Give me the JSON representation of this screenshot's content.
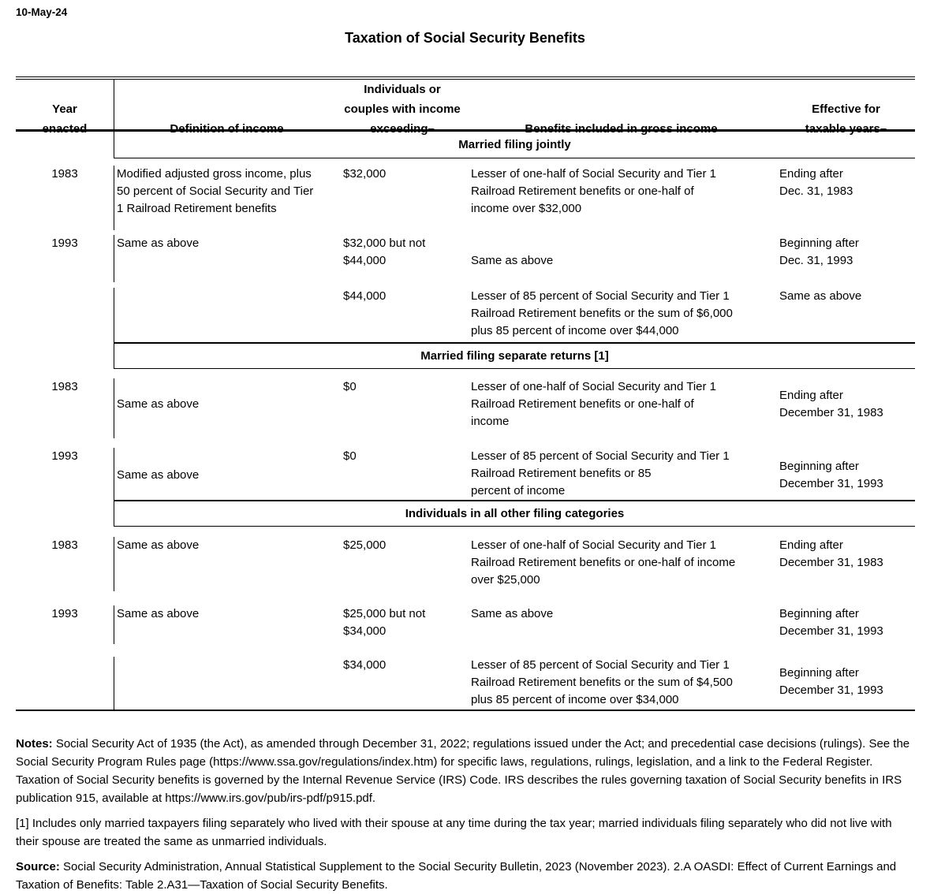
{
  "page": {
    "date": "10-May-24",
    "title": "Taxation of Social Security Benefits"
  },
  "table": {
    "headers": {
      "year": "Year\nenacted",
      "definition": "Definition of income",
      "exceeding": "Individuals or\ncouples with income\nexceeding–",
      "benefits": "Benefits included in gross income",
      "effective": "Effective for\ntaxable years–"
    },
    "sections": [
      {
        "title": "Married filing jointly",
        "rows": [
          {
            "year": "1983",
            "definition": "Modified adjusted gross income, plus\n50 percent of Social Security and Tier\n1 Railroad Retirement benefits",
            "exceeding": "$32,000",
            "benefits": "Lesser of one-half of Social Security and Tier 1\nRailroad Retirement benefits or one-half of\nincome over $32,000",
            "effective": "Ending after\nDec. 31, 1983"
          },
          {
            "year": "1993",
            "definition": "Same as above",
            "exceeding": "$32,000 but not\n$44,000",
            "benefits": "Same as above",
            "effective": "Beginning after\nDec. 31, 1993"
          },
          {
            "year": "",
            "definition": "",
            "exceeding": "$44,000",
            "benefits": "Lesser of 85 percent of Social Security and Tier 1\nRailroad Retirement benefits or the sum of $6,000\nplus 85 percent of income over $44,000",
            "effective": "Same as above"
          }
        ]
      },
      {
        "title": "Married filing separate returns [1]",
        "rows": [
          {
            "year": "1983",
            "definition": "Same as above",
            "exceeding": "$0",
            "benefits": "Lesser of one-half of Social Security and Tier 1\nRailroad Retirement benefits or one-half of\nincome",
            "effective": "Ending after\nDecember 31, 1983"
          },
          {
            "year": "1993",
            "definition": "Same as above",
            "exceeding": "$0",
            "benefits": "Lesser of 85 percent of Social Security and Tier 1\nRailroad Retirement benefits or 85\npercent of income",
            "effective": "Beginning after\nDecember 31, 1993"
          }
        ]
      },
      {
        "title": "Individuals in all other filing categories",
        "rows": [
          {
            "year": "1983",
            "definition": "Same as above",
            "exceeding": "$25,000",
            "benefits": "Lesser of one-half of Social Security and Tier 1\nRailroad Retirement benefits or one-half of income\nover $25,000",
            "effective": "Ending after\nDecember 31, 1983"
          },
          {
            "year": "1993",
            "definition": "Same as above",
            "exceeding": "$25,000 but not\n$34,000",
            "benefits": "Same as above",
            "effective": "Beginning after\nDecember 31, 1993"
          },
          {
            "year": "",
            "definition": "",
            "exceeding": "$34,000",
            "benefits": "Lesser of 85 percent of Social Security and Tier 1\nRailroad Retirement benefits or the sum of $4,500\nplus 85 percent of income over $34,000",
            "effective": "Beginning after\nDecember 31, 1993"
          }
        ]
      }
    ]
  },
  "footer": {
    "notes_label": "Notes:",
    "notes_text": " Social Security Act of 1935 (the Act), as amended through December 31, 2022; regulations issued under the Act; and precedential case decisions (rulings). See the Social Security Program Rules page (https://www.ssa.gov/regulations/index.htm) for specific laws, regulations, rulings, legislation, and a link to the Federal Register. Taxation of Social Security benefits is governed by the Internal Revenue Service (IRS) Code. IRS describes the rules governing taxation of Social Security benefits in IRS publication 915, available at https://www.irs.gov/pub/irs-pdf/p915.pdf.",
    "footnote_1": "[1] Includes only married taxpayers filing separately who lived with their spouse at any time during the tax year; married individuals filing separately who did not live with their spouse are treated the same as unmarried individuals.",
    "source_label": "Source:",
    "source_text": " Social Security Administration, Annual Statistical Supplement to the Social Security Bulletin, 2023 (November 2023). 2.A OASDI: Effect of Current Earnings and Taxation of Benefits: Table 2.A31—Taxation of Social Security Benefits."
  }
}
